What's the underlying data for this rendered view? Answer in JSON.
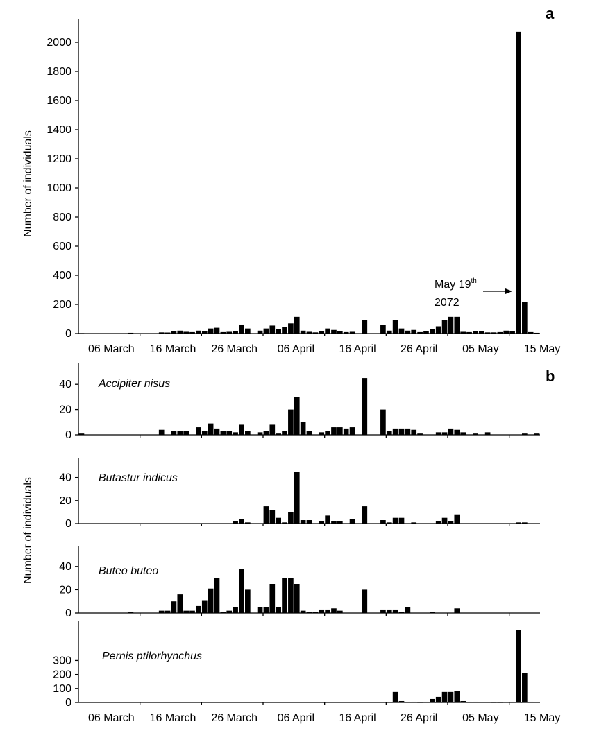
{
  "chart_data": [
    {
      "type": "bar",
      "panel_label": "a",
      "ylabel": "Number of individuals",
      "ylim": [
        0,
        2100
      ],
      "yticks": [
        0,
        200,
        400,
        600,
        800,
        1000,
        1200,
        1400,
        1600,
        1800,
        2000
      ],
      "x_tick_labels": [
        "06 March",
        "16 March",
        "26 March",
        "06 April",
        "16 April",
        "26 April",
        "05 May",
        "15 May"
      ],
      "annotation": {
        "line1": "May 19",
        "sup": "th",
        "line2": "2072"
      },
      "values": [
        [
          0,
          3
        ],
        [
          8,
          5
        ],
        [
          13,
          8
        ],
        [
          14,
          7
        ],
        [
          15,
          18
        ],
        [
          16,
          20
        ],
        [
          17,
          12
        ],
        [
          18,
          10
        ],
        [
          19,
          20
        ],
        [
          20,
          15
        ],
        [
          21,
          35
        ],
        [
          22,
          40
        ],
        [
          23,
          10
        ],
        [
          24,
          12
        ],
        [
          25,
          15
        ],
        [
          26,
          62
        ],
        [
          27,
          35
        ],
        [
          29,
          20
        ],
        [
          30,
          35
        ],
        [
          31,
          55
        ],
        [
          32,
          30
        ],
        [
          33,
          45
        ],
        [
          34,
          70
        ],
        [
          35,
          115
        ],
        [
          36,
          20
        ],
        [
          37,
          12
        ],
        [
          38,
          8
        ],
        [
          39,
          15
        ],
        [
          40,
          35
        ],
        [
          41,
          25
        ],
        [
          42,
          15
        ],
        [
          43,
          10
        ],
        [
          44,
          12
        ],
        [
          46,
          95
        ],
        [
          49,
          60
        ],
        [
          50,
          20
        ],
        [
          51,
          95
        ],
        [
          52,
          35
        ],
        [
          53,
          20
        ],
        [
          54,
          25
        ],
        [
          55,
          10
        ],
        [
          56,
          15
        ],
        [
          57,
          30
        ],
        [
          58,
          50
        ],
        [
          59,
          95
        ],
        [
          60,
          115
        ],
        [
          61,
          115
        ],
        [
          62,
          12
        ],
        [
          63,
          10
        ],
        [
          64,
          15
        ],
        [
          65,
          15
        ],
        [
          66,
          8
        ],
        [
          67,
          8
        ],
        [
          68,
          10
        ],
        [
          69,
          20
        ],
        [
          70,
          18
        ],
        [
          71,
          2072
        ],
        [
          72,
          215
        ],
        [
          73,
          10
        ],
        [
          74,
          5
        ]
      ]
    },
    {
      "type": "bar",
      "panel_label": "b",
      "title": "Accipiter nisus",
      "ylim": [
        0,
        50
      ],
      "yticks": [
        0,
        20,
        40
      ],
      "values": [
        [
          0,
          1
        ],
        [
          13,
          4
        ],
        [
          15,
          3
        ],
        [
          16,
          3
        ],
        [
          17,
          3
        ],
        [
          19,
          6
        ],
        [
          20,
          3
        ],
        [
          21,
          9
        ],
        [
          22,
          5
        ],
        [
          23,
          3
        ],
        [
          24,
          3
        ],
        [
          25,
          2
        ],
        [
          26,
          8
        ],
        [
          27,
          3
        ],
        [
          29,
          2
        ],
        [
          30,
          3
        ],
        [
          31,
          8
        ],
        [
          32,
          1
        ],
        [
          33,
          3
        ],
        [
          34,
          20
        ],
        [
          35,
          30
        ],
        [
          36,
          10
        ],
        [
          37,
          3
        ],
        [
          39,
          2
        ],
        [
          40,
          3
        ],
        [
          41,
          6
        ],
        [
          42,
          6
        ],
        [
          43,
          5
        ],
        [
          44,
          6
        ],
        [
          46,
          45
        ],
        [
          49,
          20
        ],
        [
          50,
          3
        ],
        [
          51,
          5
        ],
        [
          52,
          5
        ],
        [
          53,
          5
        ],
        [
          54,
          4
        ],
        [
          55,
          1
        ],
        [
          58,
          2
        ],
        [
          59,
          2
        ],
        [
          60,
          5
        ],
        [
          61,
          4
        ],
        [
          62,
          2
        ],
        [
          64,
          1
        ],
        [
          66,
          2
        ],
        [
          72,
          1
        ],
        [
          74,
          1
        ]
      ]
    },
    {
      "type": "bar",
      "title": "Butastur indicus",
      "ylim": [
        0,
        50
      ],
      "yticks": [
        0,
        20,
        40
      ],
      "values": [
        [
          25,
          2
        ],
        [
          26,
          4
        ],
        [
          27,
          1
        ],
        [
          30,
          15
        ],
        [
          31,
          12
        ],
        [
          32,
          5
        ],
        [
          33,
          1
        ],
        [
          34,
          10
        ],
        [
          35,
          45
        ],
        [
          36,
          3
        ],
        [
          37,
          3
        ],
        [
          39,
          2
        ],
        [
          40,
          7
        ],
        [
          41,
          2
        ],
        [
          42,
          2
        ],
        [
          44,
          4
        ],
        [
          46,
          15
        ],
        [
          49,
          3
        ],
        [
          50,
          1
        ],
        [
          51,
          5
        ],
        [
          52,
          5
        ],
        [
          54,
          1
        ],
        [
          58,
          2
        ],
        [
          59,
          5
        ],
        [
          60,
          2
        ],
        [
          61,
          8
        ],
        [
          71,
          1
        ],
        [
          72,
          1
        ]
      ]
    },
    {
      "type": "bar",
      "title": "Buteo buteo",
      "ylim": [
        0,
        50
      ],
      "yticks": [
        0,
        20,
        40
      ],
      "values": [
        [
          8,
          1
        ],
        [
          13,
          2
        ],
        [
          14,
          2
        ],
        [
          15,
          10
        ],
        [
          16,
          16
        ],
        [
          17,
          2
        ],
        [
          18,
          2
        ],
        [
          19,
          6
        ],
        [
          20,
          11
        ],
        [
          21,
          21
        ],
        [
          22,
          30
        ],
        [
          23,
          1
        ],
        [
          24,
          2
        ],
        [
          25,
          5
        ],
        [
          26,
          38
        ],
        [
          27,
          20
        ],
        [
          29,
          5
        ],
        [
          30,
          5
        ],
        [
          31,
          25
        ],
        [
          32,
          5
        ],
        [
          33,
          30
        ],
        [
          34,
          30
        ],
        [
          35,
          25
        ],
        [
          36,
          2
        ],
        [
          37,
          1
        ],
        [
          38,
          1
        ],
        [
          39,
          3
        ],
        [
          40,
          3
        ],
        [
          41,
          4
        ],
        [
          42,
          2
        ],
        [
          46,
          20
        ],
        [
          49,
          3
        ],
        [
          50,
          3
        ],
        [
          51,
          3
        ],
        [
          52,
          1
        ],
        [
          53,
          5
        ],
        [
          57,
          1
        ],
        [
          61,
          4
        ]
      ]
    },
    {
      "type": "bar",
      "title": "Pernis ptilorhynchus",
      "ylim": [
        0,
        520
      ],
      "yticks": [
        0,
        100,
        200,
        300
      ],
      "x_tick_labels": [
        "06 March",
        "16 March",
        "26 March",
        "06 April",
        "16 April",
        "26 April",
        "05 May",
        "15 May"
      ],
      "values": [
        [
          51,
          75
        ],
        [
          52,
          10
        ],
        [
          53,
          5
        ],
        [
          54,
          5
        ],
        [
          55,
          2
        ],
        [
          56,
          5
        ],
        [
          57,
          25
        ],
        [
          58,
          40
        ],
        [
          59,
          75
        ],
        [
          60,
          75
        ],
        [
          61,
          80
        ],
        [
          62,
          10
        ],
        [
          63,
          5
        ],
        [
          64,
          5
        ],
        [
          65,
          3
        ],
        [
          66,
          3
        ],
        [
          67,
          2
        ],
        [
          68,
          2
        ],
        [
          70,
          5
        ],
        [
          71,
          520
        ],
        [
          72,
          210
        ],
        [
          73,
          5
        ],
        [
          74,
          3
        ]
      ]
    }
  ]
}
